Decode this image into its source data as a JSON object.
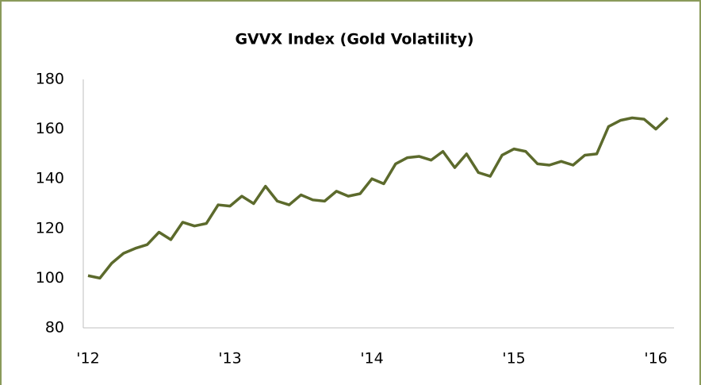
{
  "chart_data": {
    "type": "line",
    "title": "GVVX Index (Gold Volatility)",
    "categories": [
      "'12",
      null,
      null,
      null,
      null,
      null,
      null,
      null,
      null,
      null,
      null,
      null,
      "'13",
      null,
      null,
      null,
      null,
      null,
      null,
      null,
      null,
      null,
      null,
      null,
      "'14",
      null,
      null,
      null,
      null,
      null,
      null,
      null,
      null,
      null,
      null,
      null,
      "'15",
      null,
      null,
      null,
      null,
      null,
      null,
      null,
      null,
      null,
      null,
      null,
      "'16",
      null
    ],
    "series": [
      {
        "name": "GVVX",
        "color": "#5c6a2c",
        "values": [
          101,
          100,
          106,
          110,
          112,
          113.5,
          118.5,
          115.5,
          122.5,
          121,
          122,
          129.5,
          129,
          133,
          130,
          137,
          131,
          129.5,
          133.5,
          131.5,
          131,
          135,
          133,
          134,
          140,
          138,
          146,
          148.5,
          149,
          147.5,
          151,
          144.5,
          150,
          142.5,
          141,
          149.5,
          152,
          151,
          146,
          145.5,
          147,
          145.5,
          149.5,
          150,
          161,
          163.5,
          164.5,
          164,
          160,
          164.5
        ]
      }
    ],
    "ylim": [
      80,
      180
    ],
    "yticks": [
      80,
      100,
      120,
      140,
      160,
      180
    ],
    "grid": false
  }
}
